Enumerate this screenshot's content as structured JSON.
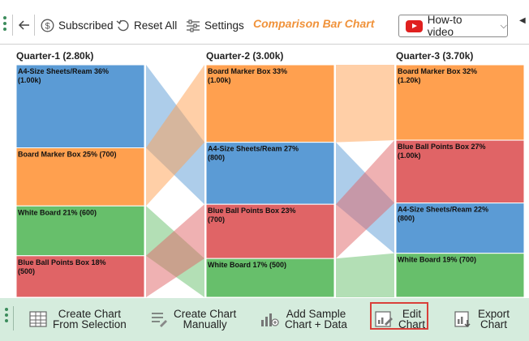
{
  "toolbar": {
    "back_icon": "back-arrow-icon",
    "subscribed_label": "Subscribed",
    "reset_label": "Reset All",
    "settings_label": "Settings",
    "chart_name": "Comparison Bar Chart",
    "howto_label": "How-to video"
  },
  "bottom_toolbar": {
    "create_selection": [
      "Create Chart",
      "From Selection"
    ],
    "create_manual": [
      "Create Chart",
      "Manually"
    ],
    "add_sample": [
      "Add Sample",
      "Chart + Data"
    ],
    "edit_chart": [
      "Edit",
      "Chart"
    ],
    "export_chart": [
      "Export",
      "Chart"
    ]
  },
  "colors": {
    "blue": "#5b9bd5",
    "orange": "#ffa04f",
    "green": "#67bf6b",
    "red": "#e06466",
    "accent": "#f0923a",
    "bottom_bar": "#d5ecdd"
  },
  "chart_data": {
    "type": "bar",
    "subtype": "comparison-stacked-ribbon",
    "columns": [
      {
        "header": "Quarter-1 (2.80k)",
        "segments": [
          {
            "name": "A4-Size Sheets/Ream",
            "value": 1000,
            "label": "A4-Size Sheets/Ream 36% (1.00k)",
            "color": "blue"
          },
          {
            "name": "Board Marker Box",
            "value": 700,
            "label": "Board Marker Box 25% (700)",
            "color": "orange"
          },
          {
            "name": "White Board",
            "value": 600,
            "label": "White Board 21% (600)",
            "color": "green"
          },
          {
            "name": "Blue Ball Points Box",
            "value": 500,
            "label": "Blue Ball Points Box 18% (500)",
            "color": "red"
          }
        ]
      },
      {
        "header": "Quarter-2 (3.00k)",
        "segments": [
          {
            "name": "Board Marker Box",
            "value": 1000,
            "label": "Board Marker Box 33% (1.00k)",
            "color": "orange"
          },
          {
            "name": "A4-Size Sheets/Ream",
            "value": 800,
            "label": "A4-Size Sheets/Ream 27% (800)",
            "color": "blue"
          },
          {
            "name": "Blue Ball Points Box",
            "value": 700,
            "label": "Blue Ball Points Box 23% (700)",
            "color": "red"
          },
          {
            "name": "White Board",
            "value": 500,
            "label": "White Board 17% (500)",
            "color": "green"
          }
        ]
      },
      {
        "header": "Quarter-3 (3.70k)",
        "segments": [
          {
            "name": "Board Marker Box",
            "value": 1200,
            "label": "Board Marker Box 32% (1.20k)",
            "color": "orange"
          },
          {
            "name": "Blue Ball Points Box",
            "value": 1000,
            "label": "Blue Ball Points Box 27% (1.00k)",
            "color": "red"
          },
          {
            "name": "A4-Size Sheets/Ream",
            "value": 800,
            "label": "A4-Size Sheets/Ream 22% (800)",
            "color": "blue"
          },
          {
            "name": "White Board",
            "value": 700,
            "label": "White Board 19% (700)",
            "color": "green"
          }
        ]
      }
    ]
  }
}
